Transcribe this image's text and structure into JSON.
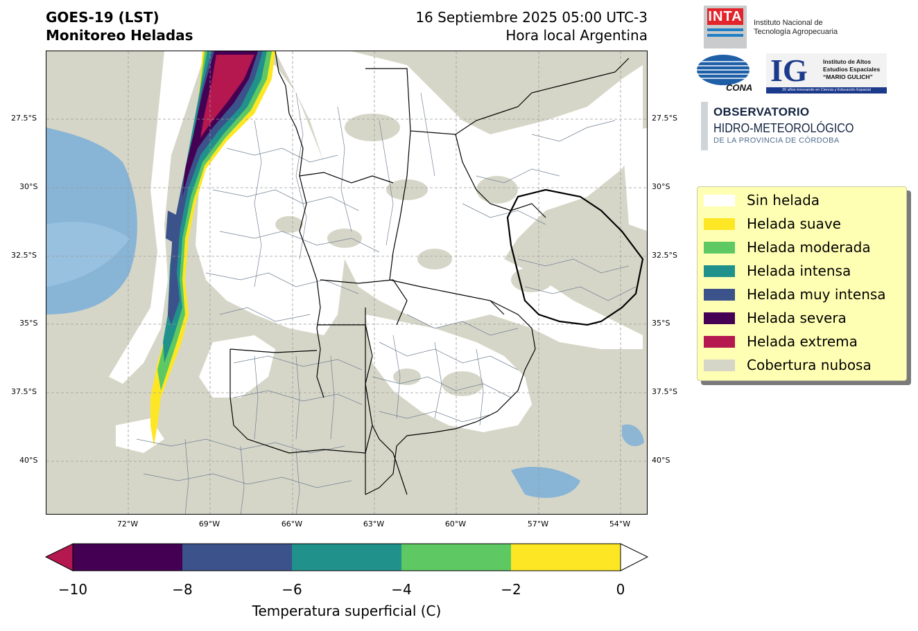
{
  "header": {
    "title_line1": "GOES-19 (LST)",
    "title_line2": "Monitoreo Heladas",
    "date_line": "16 Septiembre 2025 05:00 UTC-3",
    "local_line": "Hora local Argentina"
  },
  "map": {
    "lat_labels": [
      "27.5°S",
      "30°S",
      "32.5°S",
      "35°S",
      "37.5°S",
      "40°S"
    ],
    "lon_labels": [
      "72°W",
      "69°W",
      "66°W",
      "63°W",
      "60°W",
      "57°W",
      "54°W"
    ],
    "colors": {
      "cloud": "#d6d6c8",
      "no_frost": "#ffffff",
      "ocean_cold": "#7aaed8",
      "border": "#000000",
      "department_line": "#6e7f92",
      "grid": "#9a9a9a"
    }
  },
  "logos": {
    "inta_mark": "INTA",
    "inta_line1": "Instituto Nacional de",
    "inta_line2": "Tecnología Agropecuaria",
    "conae": "CONAE",
    "ig_mark": "IG",
    "ig_line1": "Instituto de Altos",
    "ig_line2": "Estudios Espaciales",
    "ig_line3": "“MARIO GULICH”",
    "ig_bar": "20 años innovando en Ciencia y Educación Espacial",
    "obs_line1": "OBSERVATORIO",
    "obs_line2": "HIDRO-METEOROLÓGICO",
    "obs_line3": "DE LA PROVINCIA DE CÓRDOBA"
  },
  "legend": {
    "items": [
      {
        "label": "Sin helada",
        "color": "#ffffff"
      },
      {
        "label": "Helada suave",
        "color": "#fde725"
      },
      {
        "label": "Helada moderada",
        "color": "#5ec962"
      },
      {
        "label": "Helada intensa",
        "color": "#21918c"
      },
      {
        "label": "Helada muy intensa",
        "color": "#3b528b"
      },
      {
        "label": "Helada severa",
        "color": "#440154"
      },
      {
        "label": "Helada extrema",
        "color": "#b5174f"
      },
      {
        "label": "Cobertura nubosa",
        "color": "#d6d6c8"
      }
    ]
  },
  "colorbar": {
    "ticks": [
      "−10",
      "−8",
      "−6",
      "−4",
      "−2",
      "0"
    ],
    "label": "Temperatura superficial (C)",
    "segments": [
      "#440154",
      "#3b528b",
      "#21918c",
      "#5ec962",
      "#fde725"
    ],
    "under_color": "#b5174f",
    "over_color": "#ffffff"
  }
}
